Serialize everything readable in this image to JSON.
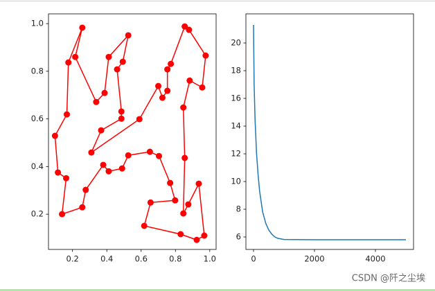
{
  "chart_data": [
    {
      "type": "line",
      "x": [
        0.098,
        0.115,
        0.163,
        0.139,
        0.257,
        0.277,
        0.379,
        0.411,
        0.489,
        0.525,
        0.651,
        0.704,
        0.769,
        0.798,
        0.655,
        0.618,
        0.83,
        0.924,
        0.968,
        0.936,
        0.875,
        0.846,
        0.854,
        0.846,
        0.883,
        0.956,
        0.976,
        0.879,
        0.854,
        0.773,
        0.753,
        0.753,
        0.724,
        0.7,
        0.59,
        0.31,
        0.367,
        0.485,
        0.485,
        0.46,
        0.493,
        0.525,
        0.411,
        0.387,
        0.338,
        0.216,
        0.257,
        0.176,
        0.167
      ],
      "series": [
        {
          "color": "#ff0000",
          "marker": "o",
          "closed": true,
          "values": [
            0.529,
            0.375,
            0.351,
            0.2,
            0.229,
            0.302,
            0.407,
            0.38,
            0.392,
            0.447,
            0.462,
            0.444,
            0.331,
            0.258,
            0.249,
            0.151,
            0.116,
            0.092,
            0.11,
            0.328,
            0.241,
            0.203,
            0.436,
            0.648,
            0.761,
            0.732,
            0.866,
            0.974,
            0.988,
            0.831,
            0.808,
            0.718,
            0.689,
            0.738,
            0.599,
            0.459,
            0.552,
            0.601,
            0.631,
            0.808,
            0.84,
            0.951,
            0.86,
            0.709,
            0.671,
            0.86,
            0.983,
            0.837,
            0.619
          ]
        }
      ],
      "xlim": [
        0.06,
        1.037
      ],
      "ylim": [
        0.052,
        1.041
      ],
      "xticks": [
        0.2,
        0.4,
        0.6,
        0.8,
        {
          "value": 1,
          "label": "1.0"
        }
      ],
      "yticks": [
        0.2,
        0.4,
        0.6,
        0.8,
        {
          "value": 1,
          "label": "1.0"
        }
      ]
    },
    {
      "type": "line",
      "x": [
        0,
        20,
        50,
        100,
        150,
        200,
        300,
        400,
        500,
        600,
        700,
        800,
        1000,
        2000,
        3000,
        4000,
        5000
      ],
      "series": [
        {
          "color": "#1f77b4",
          "values": [
            21.3,
            17,
            14.5,
            12,
            10.5,
            9.3,
            7.8,
            7,
            6.5,
            6.2,
            6,
            5.9,
            5.82,
            5.8,
            5.8,
            5.8,
            5.8
          ]
        }
      ],
      "xlim": [
        -250,
        5250
      ],
      "ylim": [
        5.1,
        22.1
      ],
      "xticks": [
        0,
        2000,
        4000
      ],
      "yticks": [
        6,
        8,
        10,
        12,
        14,
        16,
        18,
        20
      ]
    }
  ],
  "watermark": "CSDN @阡之尘埃"
}
